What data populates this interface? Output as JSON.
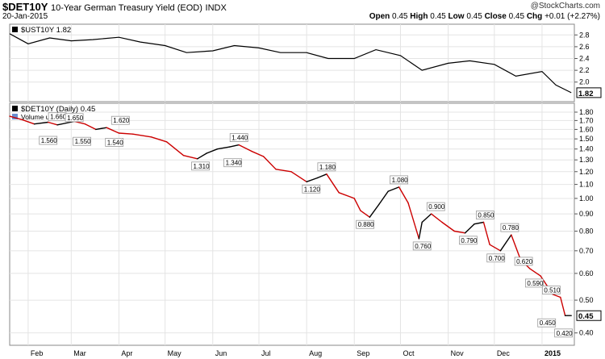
{
  "header": {
    "symbol": "$DET10Y",
    "description": "10-Year German Treasury Yield (EOD)",
    "exchange": "INDX",
    "date": "20-Jan-2015",
    "brand": "@StockCharts.com",
    "open_label": "Open",
    "open": "0.45",
    "high_label": "High",
    "high": "0.45",
    "low_label": "Low",
    "low": "0.45",
    "close_label": "Close",
    "close": "0.45",
    "chg_label": "Chg",
    "chg": "+0.01 (+2.27%)"
  },
  "colors": {
    "ust_line": "#000000",
    "det_line_up": "#000000",
    "det_line_down": "#cc0000",
    "grid": "#e4e4e4",
    "panel_border": "#888888"
  },
  "chart_data": [
    {
      "type": "line",
      "panel": "top",
      "legend": "$UST10Y 1.82",
      "last_value_label": "1.82",
      "ylim": [
        1.75,
        2.9
      ],
      "y_ticks": [
        "2.0",
        "2.2",
        "2.4",
        "2.6",
        "2.8"
      ],
      "y_ticks_values": [
        2.0,
        2.2,
        2.4,
        2.6,
        2.8
      ],
      "x_dates": [
        "2014-01-20",
        "2014-02-01",
        "2014-02-15",
        "2014-03-01",
        "2014-03-15",
        "2014-04-01",
        "2014-04-15",
        "2014-05-01",
        "2014-05-15",
        "2014-06-01",
        "2014-06-15",
        "2014-07-01",
        "2014-07-15",
        "2014-08-01",
        "2014-08-15",
        "2014-09-01",
        "2014-09-15",
        "2014-10-01",
        "2014-10-15",
        "2014-11-01",
        "2014-11-15",
        "2014-12-01",
        "2014-12-15",
        "2015-01-01",
        "2015-01-10",
        "2015-01-20"
      ],
      "values": [
        2.82,
        2.65,
        2.75,
        2.7,
        2.72,
        2.76,
        2.68,
        2.62,
        2.5,
        2.53,
        2.62,
        2.58,
        2.5,
        2.5,
        2.4,
        2.4,
        2.55,
        2.45,
        2.2,
        2.32,
        2.36,
        2.3,
        2.1,
        2.18,
        1.95,
        1.82
      ]
    },
    {
      "type": "line",
      "panel": "bottom",
      "legend": "$DET10Y (Daily) 0.45",
      "legend2": "Volume undef",
      "last_value_label": "0.45",
      "scale": "log",
      "ylim": [
        0.38,
        1.85
      ],
      "y_ticks": [
        "0.40",
        "0.50",
        "0.60",
        "0.70",
        "0.80",
        "0.90",
        "1.00",
        "1.10",
        "1.20",
        "1.30",
        "1.40",
        "1.50",
        "1.60",
        "1.70",
        "1.80"
      ],
      "y_ticks_values": [
        0.4,
        0.5,
        0.6,
        0.7,
        0.8,
        0.9,
        1.0,
        1.1,
        1.2,
        1.3,
        1.4,
        1.5,
        1.6,
        1.7,
        1.8
      ],
      "x_dates": [
        "2014-01-20",
        "2014-01-28",
        "2014-02-05",
        "2014-02-14",
        "2014-02-20",
        "2014-03-03",
        "2014-03-10",
        "2014-03-17",
        "2014-03-24",
        "2014-04-01",
        "2014-04-10",
        "2014-04-22",
        "2014-05-02",
        "2014-05-13",
        "2014-05-22",
        "2014-05-28",
        "2014-06-04",
        "2014-06-12",
        "2014-06-18",
        "2014-06-26",
        "2014-07-04",
        "2014-07-12",
        "2014-07-22",
        "2014-08-01",
        "2014-08-08",
        "2014-08-14",
        "2014-08-22",
        "2014-09-01",
        "2014-09-05",
        "2014-09-11",
        "2014-09-17",
        "2014-09-23",
        "2014-09-30",
        "2014-10-06",
        "2014-10-13",
        "2014-10-15",
        "2014-10-21",
        "2014-10-28",
        "2014-11-05",
        "2014-11-12",
        "2014-11-18",
        "2014-11-24",
        "2014-11-28",
        "2014-12-05",
        "2014-12-12",
        "2014-12-18",
        "2014-12-24",
        "2014-12-31",
        "2015-01-08",
        "2015-01-13",
        "2015-01-16",
        "2015-01-20"
      ],
      "values": [
        1.75,
        1.71,
        1.66,
        1.68,
        1.65,
        1.69,
        1.66,
        1.6,
        1.62,
        1.56,
        1.55,
        1.52,
        1.47,
        1.34,
        1.31,
        1.36,
        1.4,
        1.42,
        1.44,
        1.38,
        1.33,
        1.22,
        1.2,
        1.12,
        1.15,
        1.18,
        1.04,
        1.0,
        0.92,
        0.88,
        0.96,
        1.05,
        1.08,
        0.97,
        0.76,
        0.85,
        0.9,
        0.85,
        0.8,
        0.79,
        0.84,
        0.85,
        0.73,
        0.7,
        0.78,
        0.66,
        0.62,
        0.59,
        0.52,
        0.51,
        0.45,
        0.45
      ],
      "annotations": [
        {
          "date": "2014-02-20",
          "value": 1.66,
          "label": "1.660",
          "pos": "above"
        },
        {
          "date": "2014-03-03",
          "value": 1.65,
          "label": "1.650",
          "pos": "above"
        },
        {
          "date": "2014-04-02",
          "value": 1.62,
          "label": "1.620",
          "pos": "above"
        },
        {
          "date": "2014-02-14",
          "value": 1.56,
          "label": "1.560",
          "pos": "below"
        },
        {
          "date": "2014-03-08",
          "value": 1.55,
          "label": "1.550",
          "pos": "below"
        },
        {
          "date": "2014-03-29",
          "value": 1.54,
          "label": "1.540",
          "pos": "below"
        },
        {
          "date": "2014-06-18",
          "value": 1.44,
          "label": "1.440",
          "pos": "above"
        },
        {
          "date": "2014-05-24",
          "value": 1.31,
          "label": "1.310",
          "pos": "below"
        },
        {
          "date": "2014-06-14",
          "value": 1.34,
          "label": "1.340",
          "pos": "below"
        },
        {
          "date": "2014-08-14",
          "value": 1.18,
          "label": "1.180",
          "pos": "above"
        },
        {
          "date": "2014-08-04",
          "value": 1.12,
          "label": "1.120",
          "pos": "below"
        },
        {
          "date": "2014-09-30",
          "value": 1.08,
          "label": "1.080",
          "pos": "above"
        },
        {
          "date": "2014-09-08",
          "value": 0.88,
          "label": "0.880",
          "pos": "below"
        },
        {
          "date": "2014-10-24",
          "value": 0.9,
          "label": "0.900",
          "pos": "above"
        },
        {
          "date": "2014-10-15",
          "value": 0.76,
          "label": "0.760",
          "pos": "below"
        },
        {
          "date": "2014-11-25",
          "value": 0.85,
          "label": "0.850",
          "pos": "above"
        },
        {
          "date": "2014-11-14",
          "value": 0.79,
          "label": "0.790",
          "pos": "below"
        },
        {
          "date": "2014-12-11",
          "value": 0.78,
          "label": "0.780",
          "pos": "above"
        },
        {
          "date": "2014-12-02",
          "value": 0.7,
          "label": "0.700",
          "pos": "below"
        },
        {
          "date": "2014-12-20",
          "value": 0.62,
          "label": "0.620",
          "pos": "above"
        },
        {
          "date": "2014-12-27",
          "value": 0.59,
          "label": "0.590",
          "pos": "below"
        },
        {
          "date": "2015-01-07",
          "value": 0.51,
          "label": "0.510",
          "pos": "above"
        },
        {
          "date": "2015-01-04",
          "value": 0.45,
          "label": "0.450",
          "pos": "below"
        },
        {
          "date": "2015-01-15",
          "value": 0.42,
          "label": "0.420",
          "pos": "below"
        }
      ]
    }
  ],
  "x_axis": {
    "labels": [
      "Feb",
      "Mar",
      "Apr",
      "May",
      "Jun",
      "Jul",
      "Aug",
      "Sep",
      "Oct",
      "Nov",
      "Dec",
      "2015"
    ],
    "dates": [
      "2014-02-01",
      "2014-03-01",
      "2014-04-01",
      "2014-05-01",
      "2014-06-01",
      "2014-07-01",
      "2014-08-01",
      "2014-09-01",
      "2014-10-01",
      "2014-11-01",
      "2014-12-01",
      "2015-01-01"
    ],
    "range": [
      "2014-01-20",
      "2015-01-22"
    ]
  }
}
